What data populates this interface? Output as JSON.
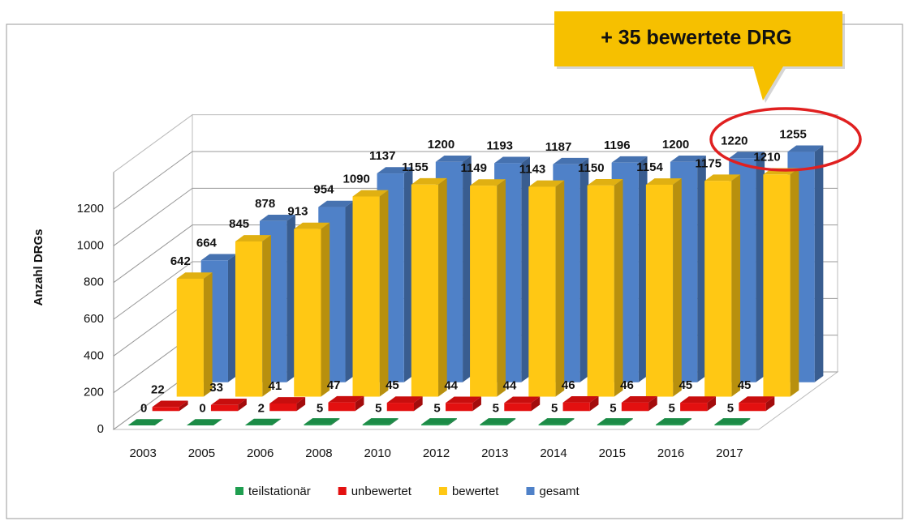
{
  "chart_data": {
    "type": "bar3d",
    "y_label": "Anzahl DRGs",
    "annotation": "+ 35 bewertete DRG",
    "categories": [
      "2003",
      "2005",
      "2006",
      "2008",
      "2010",
      "2012",
      "2013",
      "2014",
      "2015",
      "2016",
      "2017"
    ],
    "series": [
      {
        "name": "teilstationär",
        "color": "#1f9e50",
        "values": [
          0,
          0,
          2,
          5,
          5,
          5,
          5,
          5,
          5,
          5,
          5
        ]
      },
      {
        "name": "unbewertet",
        "color": "#e31010",
        "values": [
          22,
          33,
          41,
          47,
          45,
          44,
          44,
          46,
          46,
          45,
          45
        ]
      },
      {
        "name": "bewertet",
        "color": "#ffc814",
        "values": [
          642,
          845,
          913,
          1090,
          1155,
          1149,
          1143,
          1150,
          1154,
          1175,
          1210
        ]
      },
      {
        "name": "gesamt",
        "color": "#4f81c8",
        "values": [
          664,
          878,
          954,
          1137,
          1200,
          1193,
          1187,
          1196,
          1200,
          1220,
          1255
        ]
      }
    ],
    "ylim": [
      0,
      1400
    ],
    "yticks": [
      0,
      200,
      400,
      600,
      800,
      1000,
      1200
    ],
    "grid": true,
    "legend": "bottom"
  }
}
